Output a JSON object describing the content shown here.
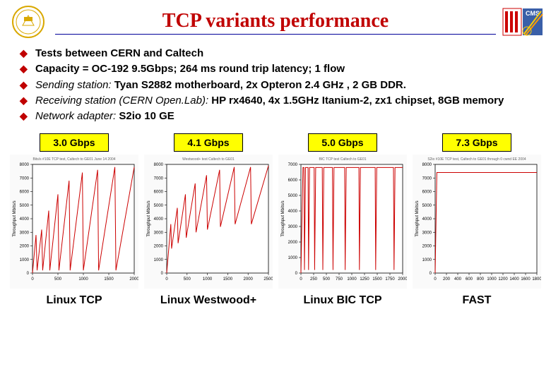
{
  "title": "TCP variants performance",
  "colors": {
    "title_color": "#c00000",
    "title_underline": "#000099",
    "bullet_marker": "#c00000",
    "label_bg": "#ffff00",
    "label_border": "#000000",
    "chart_line": "#cc0000",
    "chart_axis": "#000000",
    "chart_grid": "#d0d0d0",
    "chart_title_small": "#666666"
  },
  "bullets": [
    {
      "bold": "Tests between CERN and Caltech"
    },
    {
      "bold": "Capacity = OC-192 9.5Gbps; 264 ms round trip latency; 1 flow"
    },
    {
      "italic": "Sending station: ",
      "bold": "Tyan S2882 motherboard,  2x Opteron 2.4 GHz , 2 GB DDR."
    },
    {
      "italic": "Receiving station (CERN Open.Lab): ",
      "bold": "HP rx4640, 4x 1.5GHz Itanium-2, zx1 chipset, 8GB memory"
    },
    {
      "italic": "Network adapter: ",
      "bold": "S2io 10 GE"
    }
  ],
  "variants": [
    {
      "gbps_label": "3.0 Gbps",
      "caption": "Linux TCP",
      "chart": {
        "type": "line",
        "xrange": [
          0,
          2000
        ],
        "xtick_step": 500,
        "yrange": [
          0,
          8000
        ],
        "ytick_step": 1000,
        "series_color": "#cc0000",
        "data": [
          [
            0,
            0
          ],
          [
            70,
            2800
          ],
          [
            90,
            200
          ],
          [
            180,
            3200
          ],
          [
            200,
            200
          ],
          [
            320,
            4600
          ],
          [
            340,
            200
          ],
          [
            500,
            5800
          ],
          [
            520,
            200
          ],
          [
            720,
            6800
          ],
          [
            740,
            200
          ],
          [
            980,
            7400
          ],
          [
            1000,
            200
          ],
          [
            1280,
            7600
          ],
          [
            1300,
            200
          ],
          [
            1620,
            7800
          ],
          [
            1640,
            200
          ],
          [
            2000,
            7800
          ]
        ],
        "small_title": "Bits/s #10E TCP test, Caltech to GE01  June 14 2004"
      }
    },
    {
      "gbps_label": "4.1 Gbps",
      "caption": "Linux Westwood+",
      "chart": {
        "type": "line",
        "xrange": [
          0,
          2500
        ],
        "xtick_step": 500,
        "yrange": [
          0,
          8000
        ],
        "ytick_step": 1000,
        "series_color": "#cc0000",
        "data": [
          [
            0,
            0
          ],
          [
            100,
            3600
          ],
          [
            120,
            1800
          ],
          [
            260,
            4800
          ],
          [
            280,
            2200
          ],
          [
            460,
            5800
          ],
          [
            480,
            2600
          ],
          [
            700,
            6600
          ],
          [
            720,
            3000
          ],
          [
            980,
            7200
          ],
          [
            1000,
            3200
          ],
          [
            1300,
            7600
          ],
          [
            1320,
            3400
          ],
          [
            1660,
            7800
          ],
          [
            1680,
            3600
          ],
          [
            2060,
            7800
          ],
          [
            2080,
            3600
          ],
          [
            2500,
            7900
          ]
        ],
        "small_title": "Westwood+ test  Caltech to GE01"
      }
    },
    {
      "gbps_label": "5.0 Gbps",
      "caption": "Linux BIC TCP",
      "chart": {
        "type": "line",
        "xrange": [
          0,
          2000
        ],
        "xtick_step": 250,
        "yrange": [
          0,
          7000
        ],
        "ytick_step": 1000,
        "series_color": "#cc0000",
        "data": [
          [
            0,
            0
          ],
          [
            40,
            6800
          ],
          [
            60,
            6800
          ],
          [
            70,
            200
          ],
          [
            90,
            6800
          ],
          [
            140,
            6800
          ],
          [
            150,
            200
          ],
          [
            170,
            6800
          ],
          [
            260,
            6800
          ],
          [
            270,
            200
          ],
          [
            290,
            6800
          ],
          [
            420,
            6800
          ],
          [
            430,
            200
          ],
          [
            450,
            6800
          ],
          [
            620,
            6800
          ],
          [
            630,
            200
          ],
          [
            650,
            6800
          ],
          [
            860,
            6800
          ],
          [
            870,
            200
          ],
          [
            890,
            6800
          ],
          [
            1140,
            6800
          ],
          [
            1150,
            200
          ],
          [
            1170,
            6800
          ],
          [
            1460,
            6800
          ],
          [
            1470,
            200
          ],
          [
            1490,
            6800
          ],
          [
            1820,
            6800
          ],
          [
            1830,
            200
          ],
          [
            1850,
            6800
          ],
          [
            2000,
            6800
          ]
        ],
        "small_title": "BIC TCP test  Caltech to GE01"
      }
    },
    {
      "gbps_label": "7.3 Gbps",
      "caption": "FAST",
      "chart": {
        "type": "line",
        "xrange": [
          0,
          1800
        ],
        "xtick_step": 200,
        "yrange": [
          0,
          8000
        ],
        "ytick_step": 1000,
        "series_color": "#cc0000",
        "data": [
          [
            0,
            0
          ],
          [
            30,
            7400
          ],
          [
            1800,
            7400
          ]
        ],
        "small_title": "S2io #10E TCP test, Caltech to GE01 through  0 cwnd EE 2004"
      }
    }
  ]
}
